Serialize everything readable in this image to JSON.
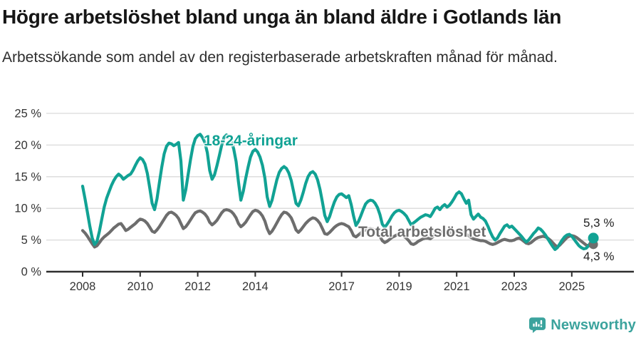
{
  "header": {
    "title": "Högre arbetslöshet bland unga än bland äldre i Gotlands län",
    "subtitle": "Arbetssökande som andel av den registerbaserade arbetskraften månad för månad."
  },
  "branding": {
    "name": "Newsworthy",
    "logo_color": "#3ba39d"
  },
  "chart_data": {
    "type": "line",
    "title": "Högre arbetslöshet bland unga än bland äldre i Gotlands län",
    "subtitle": "Arbetssökande som andel av den registerbaserade arbetskraften månad för månad.",
    "frequency": "monthly",
    "x_start": {
      "year": 2008,
      "month": 1
    },
    "x_end": {
      "year": 2025,
      "month": 10
    },
    "ylim": [
      0,
      25
    ],
    "y_tick_values": [
      0,
      5,
      10,
      15,
      20,
      25
    ],
    "y_tick_labels": [
      "0 %",
      "5 %",
      "10 %",
      "15 %",
      "20 %",
      "25 %"
    ],
    "x_ticks": [
      2008,
      2010,
      2012,
      2014,
      2017,
      2019,
      2021,
      2023,
      2025
    ],
    "grid": "horizontal",
    "legend_position": "inline-labels",
    "axis_color": "#2e2e2e",
    "grid_color": "#d9d9d9",
    "series": [
      {
        "name": "Total arbetslöshet",
        "color": "#6d6d6d",
        "end_label": "4,3 %",
        "end_value": 4.3,
        "values": [
          6.5,
          6.1,
          5.6,
          5.0,
          4.4,
          3.9,
          4.1,
          4.6,
          5.1,
          5.5,
          5.8,
          6.1,
          6.5,
          6.9,
          7.2,
          7.5,
          7.6,
          7.1,
          6.5,
          6.7,
          7.0,
          7.3,
          7.6,
          8.0,
          8.3,
          8.2,
          8.0,
          7.6,
          7.0,
          6.4,
          6.2,
          6.6,
          7.1,
          7.7,
          8.3,
          8.9,
          9.3,
          9.4,
          9.2,
          8.9,
          8.4,
          7.6,
          6.8,
          7.1,
          7.6,
          8.2,
          8.8,
          9.3,
          9.5,
          9.6,
          9.4,
          9.1,
          8.6,
          7.8,
          7.4,
          7.7,
          8.1,
          8.7,
          9.3,
          9.7,
          9.8,
          9.7,
          9.5,
          9.1,
          8.5,
          7.6,
          7.1,
          7.4,
          7.8,
          8.4,
          9.0,
          9.5,
          9.7,
          9.6,
          9.3,
          8.8,
          8.0,
          6.8,
          6.0,
          6.4,
          7.0,
          7.7,
          8.4,
          9.0,
          9.4,
          9.3,
          9.0,
          8.5,
          7.6,
          6.6,
          6.2,
          6.6,
          7.1,
          7.6,
          8.0,
          8.3,
          8.5,
          8.4,
          8.1,
          7.6,
          6.8,
          6.0,
          5.9,
          6.2,
          6.6,
          7.0,
          7.3,
          7.5,
          7.6,
          7.5,
          7.3,
          7.1,
          6.5,
          5.7,
          5.5,
          5.8,
          6.1,
          6.4,
          6.6,
          6.7,
          6.8,
          6.7,
          6.5,
          6.1,
          5.6,
          4.9,
          4.6,
          4.8,
          5.1,
          5.4,
          5.6,
          5.8,
          5.9,
          5.8,
          5.6,
          5.3,
          4.9,
          4.4,
          4.3,
          4.5,
          4.8,
          5.0,
          5.2,
          5.3,
          5.3,
          5.2,
          5.5,
          6.0,
          6.2,
          6.1,
          6.3,
          6.4,
          6.2,
          6.1,
          6.2,
          6.3,
          6.4,
          6.4,
          6.3,
          6.1,
          5.9,
          5.7,
          5.4,
          5.2,
          5.1,
          5.0,
          4.9,
          4.9,
          4.8,
          4.6,
          4.4,
          4.3,
          4.4,
          4.6,
          4.8,
          5.0,
          5.1,
          5.0,
          4.9,
          4.9,
          5.0,
          5.2,
          5.3,
          5.1,
          4.8,
          4.5,
          4.4,
          4.6,
          4.9,
          5.2,
          5.4,
          5.5,
          5.6,
          5.5,
          5.3,
          5.0,
          4.6,
          4.2,
          3.9,
          4.2,
          4.6,
          5.0,
          5.4,
          5.6,
          5.7,
          5.6,
          5.4,
          5.1,
          4.8,
          4.5,
          4.2,
          4.1,
          4.2,
          4.3
        ]
      },
      {
        "name": "18-24-åringar",
        "color": "#11a294",
        "end_label": "5,3 %",
        "end_value": 5.3,
        "values": [
          13.5,
          11.5,
          9.4,
          7.2,
          5.3,
          4.3,
          4.8,
          6.4,
          8.3,
          10.2,
          11.6,
          12.6,
          13.6,
          14.4,
          15.0,
          15.4,
          15.1,
          14.6,
          14.9,
          15.2,
          15.4,
          16.0,
          16.8,
          17.5,
          18.0,
          17.7,
          17.0,
          15.5,
          13.2,
          10.8,
          9.8,
          11.5,
          14.0,
          16.5,
          18.6,
          19.8,
          20.3,
          20.2,
          19.9,
          20.1,
          20.4,
          17.5,
          11.3,
          12.9,
          15.3,
          17.7,
          19.8,
          21.0,
          21.5,
          21.7,
          21.2,
          20.4,
          18.8,
          16.0,
          14.6,
          15.3,
          16.7,
          18.3,
          20.0,
          21.2,
          21.6,
          21.3,
          20.6,
          19.4,
          17.4,
          14.2,
          11.3,
          12.7,
          14.7,
          16.5,
          18.1,
          19.0,
          19.3,
          18.9,
          18.1,
          16.8,
          14.8,
          11.8,
          10.3,
          11.3,
          12.9,
          14.5,
          15.7,
          16.3,
          16.6,
          16.3,
          15.6,
          14.4,
          12.6,
          10.8,
          10.4,
          11.3,
          12.5,
          13.9,
          15.0,
          15.6,
          15.8,
          15.4,
          14.5,
          13.0,
          11.0,
          8.9,
          7.9,
          8.7,
          9.9,
          11.0,
          11.8,
          12.2,
          12.3,
          12.0,
          11.7,
          12.0,
          10.6,
          8.8,
          7.3,
          7.9,
          8.8,
          9.8,
          10.7,
          11.1,
          11.3,
          11.2,
          10.8,
          10.1,
          9.0,
          7.5,
          7.0,
          7.5,
          8.1,
          8.8,
          9.3,
          9.6,
          9.7,
          9.5,
          9.2,
          8.8,
          8.1,
          7.4,
          7.7,
          8.0,
          8.3,
          8.6,
          8.8,
          9.0,
          8.9,
          8.7,
          9.3,
          10.0,
          10.2,
          9.8,
          10.3,
          10.6,
          10.2,
          10.5,
          11.0,
          11.6,
          12.3,
          12.6,
          12.3,
          11.5,
          10.8,
          11.3,
          9.0,
          8.3,
          8.7,
          9.1,
          8.6,
          8.4,
          8.0,
          7.2,
          6.3,
          5.5,
          5.0,
          5.3,
          6.0,
          6.6,
          7.2,
          7.4,
          7.0,
          7.2,
          6.8,
          6.4,
          6.0,
          5.6,
          5.1,
          4.7,
          5.0,
          5.5,
          6.0,
          6.4,
          6.9,
          6.7,
          6.3,
          5.8,
          5.2,
          4.6,
          4.0,
          3.5,
          3.8,
          4.4,
          5.0,
          5.5,
          5.8,
          5.9,
          5.6,
          5.1,
          4.6,
          4.1,
          3.8,
          3.6,
          3.7,
          4.1,
          4.7,
          5.3
        ]
      }
    ]
  }
}
